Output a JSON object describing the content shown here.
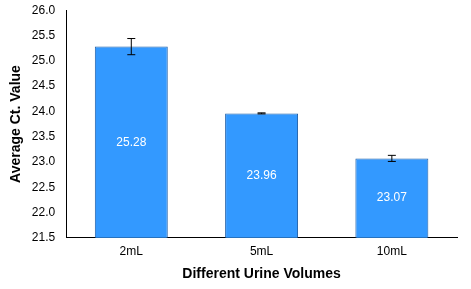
{
  "chart_data": {
    "type": "bar",
    "x_label": "Different Urine Volumes",
    "y_label": "Average Ct. Value",
    "categories": [
      "2mL",
      "5mL",
      "10mL"
    ],
    "values": [
      25.28,
      23.96,
      23.07
    ],
    "errors": [
      0.16,
      0.01,
      0.06
    ],
    "color": "#3399ff",
    "ylim": [
      21.5,
      26.0
    ],
    "yticks": [
      21.5,
      {
        "value": 22,
        "label": "22.0"
      },
      22.5,
      {
        "value": 23,
        "label": "23.0"
      },
      23.5,
      {
        "value": 24,
        "label": "24.0"
      },
      24.5,
      {
        "value": 25,
        "label": "25.0"
      },
      25.5,
      {
        "value": 26,
        "label": "26.0"
      }
    ],
    "grid": false,
    "data_labels": true
  }
}
